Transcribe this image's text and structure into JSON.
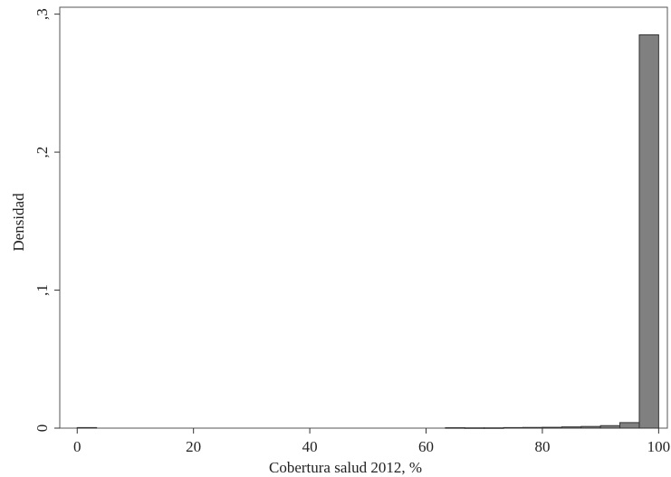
{
  "chart_data": {
    "type": "bar",
    "subtype": "histogram",
    "xlabel": "Cobertura salud 2012, %",
    "ylabel": "Densidad",
    "xlim": [
      -3,
      101.5
    ],
    "ylim": [
      0,
      0.305
    ],
    "xticks": [
      0,
      20,
      40,
      60,
      80,
      100
    ],
    "xtick_labels": [
      "0",
      "20",
      "40",
      "60",
      "80",
      "100"
    ],
    "yticks": [
      0,
      0.1,
      0.2,
      0.3
    ],
    "ytick_labels": [
      "0",
      ",1",
      ",2",
      ",3"
    ],
    "grid": false,
    "legend": "none",
    "bar_color": "#808080",
    "bar_edge_color": "#333333",
    "bins": [
      {
        "x0": 0,
        "x1": 3.33,
        "value": 0.0004
      },
      {
        "x0": 63.33,
        "x1": 66.67,
        "value": 0.0003
      },
      {
        "x0": 66.67,
        "x1": 70.0,
        "value": 0.0002
      },
      {
        "x0": 70.0,
        "x1": 73.33,
        "value": 0.0002
      },
      {
        "x0": 73.33,
        "x1": 76.67,
        "value": 0.0004
      },
      {
        "x0": 76.67,
        "x1": 80.0,
        "value": 0.0005
      },
      {
        "x0": 80.0,
        "x1": 83.33,
        "value": 0.0006
      },
      {
        "x0": 83.33,
        "x1": 86.67,
        "value": 0.0009
      },
      {
        "x0": 86.67,
        "x1": 90.0,
        "value": 0.0012
      },
      {
        "x0": 90.0,
        "x1": 93.33,
        "value": 0.0018
      },
      {
        "x0": 93.33,
        "x1": 96.67,
        "value": 0.004
      },
      {
        "x0": 96.67,
        "x1": 100.0,
        "value": 0.285
      }
    ]
  }
}
